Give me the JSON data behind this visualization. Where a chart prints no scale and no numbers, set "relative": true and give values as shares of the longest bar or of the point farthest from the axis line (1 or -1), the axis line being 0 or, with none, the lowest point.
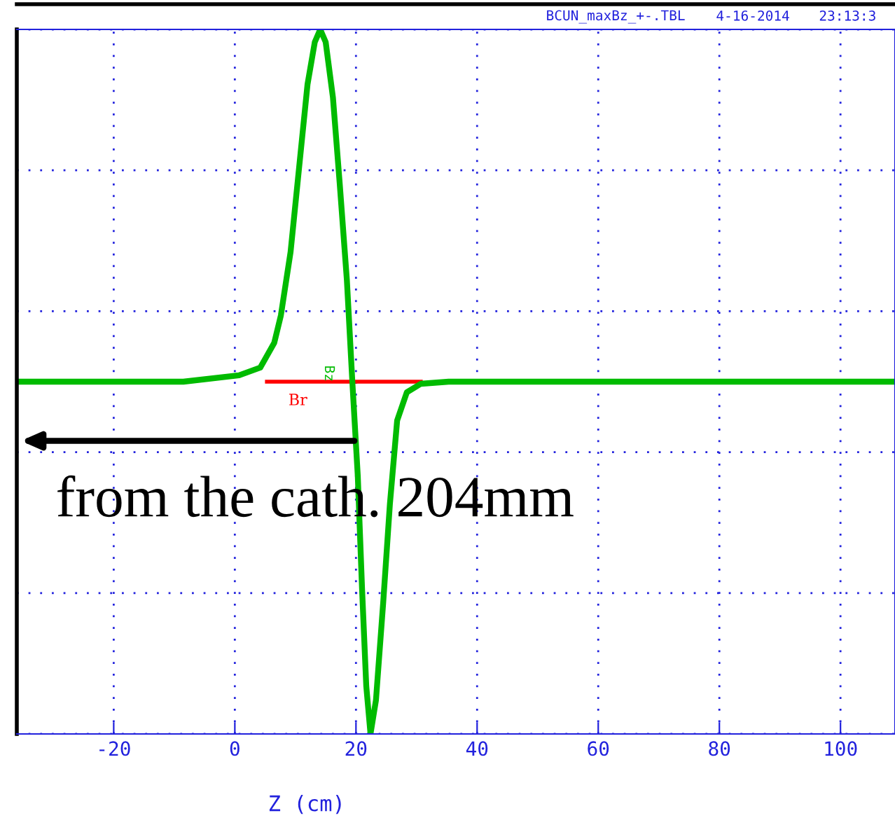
{
  "chart_data": {
    "type": "line",
    "relative": true,
    "xlabel": "Z (cm)",
    "xlim": [
      -36,
      109
    ],
    "xticks": [
      -20,
      0,
      20,
      40,
      60,
      80,
      100
    ],
    "grid": true,
    "legend": false,
    "marker": "none",
    "line_style": "solid",
    "series": [
      {
        "color": "#ff0000",
        "x": [
          5.3,
          30.7
        ],
        "values": [
          0.5,
          0.5
        ]
      },
      {
        "color": "#00bb00",
        "x": [
          -36,
          -8.5,
          0.7,
          4.2,
          6.5,
          7.6,
          9.2,
          10.6,
          12.0,
          13.2,
          14.1,
          15.0,
          16.2,
          17.3,
          18.5,
          19.4,
          20.3,
          21.0,
          21.7,
          22.4,
          23.3,
          24.5,
          25.6,
          26.8,
          28.4,
          30.7,
          35.3,
          109
        ],
        "values": [
          0.5,
          0.5,
          0.509,
          0.52,
          0.555,
          0.594,
          0.684,
          0.803,
          0.922,
          0.982,
          1.0,
          0.982,
          0.903,
          0.783,
          0.644,
          0.5,
          0.366,
          0.207,
          0.068,
          0.0,
          0.048,
          0.187,
          0.326,
          0.445,
          0.485,
          0.497,
          0.5,
          0.5
        ]
      }
    ],
    "annotations": [
      "BCUN_maxBz_+-.TBL",
      "4-16-2014",
      "23:13:3",
      {
        "text": "Br",
        "x": 10.4,
        "y": 0.5
      },
      {
        "text": "Bz",
        "x": 15.5,
        "y": 0.5
      },
      {
        "text": "from the cath. 204mm",
        "x": 20.4,
        "y": 0.416
      }
    ]
  }
}
